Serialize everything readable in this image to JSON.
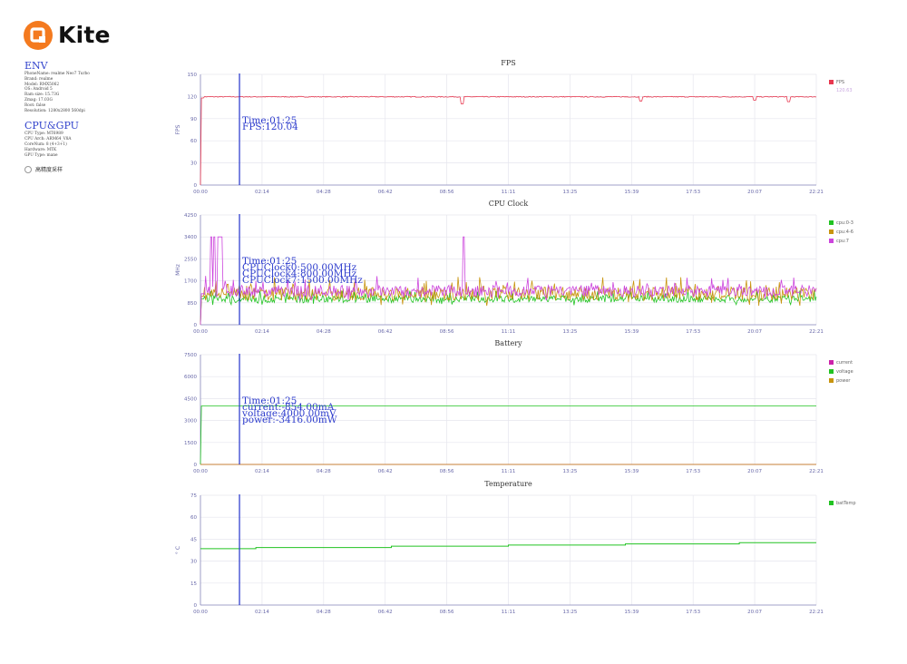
{
  "brand": {
    "name": "Kite",
    "color": "#f47a1f"
  },
  "env": {
    "title": "ENV",
    "lines": [
      "PhoneName: realme Neo7 Turbo",
      "Brand: realme",
      "Model: RMX5062",
      "OS: Android 5",
      "Ram size: 15.73G",
      "Zmag: 17.03G",
      "Root: false",
      "Resolution: 1280x2800 560dpi"
    ]
  },
  "cpu_gpu": {
    "title": "CPU&GPU",
    "lines": [
      "CPU Type: MT6989",
      "CPU Arch: ARM64_V8A",
      "CoreNum: 8 (4+3+1)",
      "Hardware: MTK",
      "GPU Type: mane"
    ]
  },
  "high_precision": {
    "label": "高精度采样",
    "checked": false
  },
  "cursor_x": "01:25",
  "chart_data": [
    {
      "type": "line",
      "title": "FPS",
      "ylabel": "FPS",
      "ylim": [
        0,
        150
      ],
      "yticks": [
        0,
        30,
        60,
        90,
        120,
        150
      ],
      "xlim": [
        "00:00",
        "22:21"
      ],
      "xticks": [
        "00:00",
        "02:14",
        "04:28",
        "06:42",
        "08:56",
        "11:11",
        "13:25",
        "15:39",
        "17:53",
        "20:07",
        "22:21"
      ],
      "legend_position": "right",
      "series": [
        {
          "name": "FPS",
          "color": "#e8384f",
          "mean": 119.6,
          "noise": 0.6,
          "start": 118,
          "dips": [
            [
              0.425,
              110
            ],
            [
              0.715,
              114
            ],
            [
              0.9,
              115
            ],
            [
              0.955,
              113
            ]
          ]
        }
      ],
      "legend_extra": "120.63",
      "tooltip": {
        "time": "Time:01:25",
        "lines": [
          "FPS:120.04"
        ]
      }
    },
    {
      "type": "line",
      "title": "CPU Clock",
      "ylabel": "MHz",
      "ylim": [
        0,
        4250
      ],
      "yticks": [
        0,
        850,
        1700,
        2550,
        3400,
        4250
      ],
      "xlim": [
        "00:00",
        "22:21"
      ],
      "xticks": [
        "00:00",
        "02:14",
        "04:28",
        "06:42",
        "08:56",
        "11:11",
        "13:25",
        "15:39",
        "17:53",
        "20:07",
        "22:21"
      ],
      "legend_position": "right",
      "series": [
        {
          "name": "cpu:0-3",
          "color": "#22c322",
          "mean": 1000,
          "noise": 140,
          "start": 1000
        },
        {
          "name": "cpu:4-6",
          "color": "#c8940e",
          "mean": 1200,
          "noise": 260,
          "start": 1100
        },
        {
          "name": "cpu:7",
          "color": "#cc44dd",
          "mean": 1300,
          "noise": 230,
          "start": 1200,
          "spikes": [
            [
              0.018,
              3400
            ],
            [
              0.022,
              3400
            ],
            [
              0.03,
              3400
            ],
            [
              0.034,
              3400
            ],
            [
              0.427,
              3400
            ]
          ]
        }
      ],
      "tooltip": {
        "time": "Time:01:25",
        "lines": [
          "CPUClock0:500.00MHz",
          "CPUClock4:800.00MHz",
          "CPUClock7:1500.00MHz"
        ]
      }
    },
    {
      "type": "line",
      "title": "Battery",
      "ylim": [
        0,
        7500
      ],
      "yticks": [
        0,
        1500,
        3000,
        4500,
        6000,
        7500
      ],
      "xlim": [
        "00:00",
        "22:21"
      ],
      "xticks": [
        "00:00",
        "02:14",
        "04:28",
        "06:42",
        "08:56",
        "11:11",
        "13:25",
        "15:39",
        "17:53",
        "20:07",
        "22:21"
      ],
      "legend_position": "right",
      "series": [
        {
          "name": "current",
          "color": "#cc22aa",
          "mean": 0,
          "noise": 0,
          "start": 0
        },
        {
          "name": "voltage",
          "color": "#22c322",
          "mean": 4000,
          "noise": 0,
          "start": 4000
        },
        {
          "name": "power",
          "color": "#c8940e",
          "mean": 0,
          "noise": 0,
          "start": 0
        }
      ],
      "tooltip": {
        "time": "Time:01:25",
        "lines": [
          "current:-854.00mA",
          "voltage:4000.00mV",
          "power:-3416.00mW"
        ]
      }
    },
    {
      "type": "line",
      "title": "Temperature",
      "ylabel": "° C",
      "ylim": [
        0,
        75
      ],
      "yticks": [
        0,
        15,
        30,
        45,
        60,
        75
      ],
      "xlim": [
        "00:00",
        "22:21"
      ],
      "xticks": [
        "00:00",
        "02:14",
        "04:28",
        "06:42",
        "08:56",
        "11:11",
        "13:25",
        "15:39",
        "17:53",
        "20:07",
        "22:21"
      ],
      "legend_position": "right",
      "series": [
        {
          "name": "batTemp",
          "color": "#22c322",
          "steps": [
            [
              0,
              38.5
            ],
            [
              0.09,
              39.3
            ],
            [
              0.31,
              40.2
            ],
            [
              0.5,
              41.0
            ],
            [
              0.69,
              41.8
            ],
            [
              0.875,
              42.6
            ],
            [
              1,
              42.6
            ]
          ]
        }
      ]
    }
  ]
}
